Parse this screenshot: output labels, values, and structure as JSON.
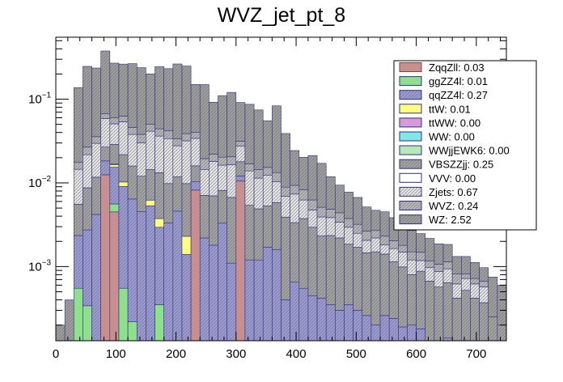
{
  "chart_data": {
    "type": "bar",
    "stacked": true,
    "title": "WVZ_jet_pt_8",
    "xlabel": "",
    "ylabel": "",
    "xlim": [
      0,
      750
    ],
    "ylim": [
      0.00013,
      0.55
    ],
    "yscale": "log",
    "bin_width": 15,
    "x_ticks": [
      0,
      100,
      200,
      300,
      400,
      500,
      600,
      700
    ],
    "x_tick_labels": [
      "0",
      "100",
      "200",
      "300",
      "400",
      "500",
      "600",
      "700"
    ],
    "y_ticks": [
      0.001,
      0.01,
      0.1
    ],
    "y_tick_labels": [
      "10",
      "10",
      "10"
    ],
    "y_tick_exponents": [
      "−3",
      "−2",
      "−1"
    ],
    "legend_position": "top-right",
    "series": [
      {
        "name": "ZqqZll",
        "legend": "ZqqZll: 0.03",
        "color": "#c88f8f",
        "hatch": false,
        "values": {
          "5": 0.0125,
          "6": 0.0045,
          "15": 0.0082,
          "20": 0.0105
        }
      },
      {
        "name": "ggZZ4l",
        "legend": "ggZZ4l: 0.01",
        "color": "#8ee08e",
        "hatch": false,
        "values": {
          "2": 0.00055,
          "3": 0.00034,
          "6": 0.0011,
          "7": 0.00055,
          "8": 0.00022,
          "9": 0.00012,
          "10": 0.00012,
          "11": 0.00035,
          "12": 0.00012
        }
      },
      {
        "name": "qqZZ4l",
        "legend": "qqZZ4l: 0.27",
        "color": "#9b9bd8",
        "hatch": true,
        "values": {
          "2": 0.0018,
          "3": 0.0024,
          "4": 0.0042,
          "5": 0.0058,
          "6": 0.0098,
          "7": 0.0085,
          "8": 0.0062,
          "9": 0.0044,
          "10": 0.0052,
          "11": 0.0026,
          "12": 0.0032,
          "13": 0.0046,
          "14": 0.0014,
          "15": 0.0021,
          "16": 0.0022,
          "17": 0.0018,
          "18": 0.0033,
          "19": 0.0011,
          "20": 0.0016,
          "21": 0.0012,
          "22": 0.0012,
          "23": 0.0017,
          "24": 0.0016,
          "25": 0.0004,
          "26": 0.00065,
          "27": 0.00055,
          "28": 0.00045,
          "29": 0.00042,
          "30": 0.00035,
          "31": 0.0003,
          "32": 0.00035,
          "33": 0.0003,
          "34": 0.00026,
          "35": 0.0002,
          "36": 0.00026,
          "37": 0.00024,
          "38": 0.00019,
          "39": 0.0002,
          "40": 0.00018,
          "41": 0.00012,
          "42": 0.00012,
          "43": 0.00014,
          "44": 0.00012,
          "45": 0.00012,
          "46": 0.00012,
          "47": 0.00012
        }
      },
      {
        "name": "ttW",
        "legend": "ttW: 0.01",
        "color": "#ffff80",
        "hatch": false,
        "values": {
          "6": 0.0011,
          "7": 0.0012,
          "10": 0.0009,
          "11": 0.0008,
          "14": 0.0009
        }
      },
      {
        "name": "ttWW",
        "legend": "ttWW: 0.00",
        "color": "#d79bd8",
        "hatch": false,
        "values": {}
      },
      {
        "name": "WW",
        "legend": "WW: 0.00",
        "color": "#80e8e8",
        "hatch": false,
        "values": {
          "6": 0.0003
        }
      },
      {
        "name": "WWjjEWK6",
        "legend": "WWjjEWK6: 0.00",
        "color": "#b8e8b8",
        "hatch": false,
        "values": {}
      },
      {
        "name": "VBSZZjj",
        "legend": "VBSZZjj: 0.25",
        "color": "#a3a3a3",
        "hatch": true,
        "values": {
          "2": 0.0032,
          "3": 0.006,
          "4": 0.0075,
          "5": 0.0085,
          "6": 0.012,
          "7": 0.0115,
          "8": 0.0095,
          "9": 0.0075,
          "10": 0.0082,
          "11": 0.0095,
          "12": 0.0065,
          "13": 0.0072,
          "14": 0.0075,
          "15": 0.0057,
          "16": 0.0049,
          "17": 0.0052,
          "18": 0.0048,
          "19": 0.0056,
          "20": 0.0058,
          "21": 0.0042,
          "22": 0.0037,
          "23": 0.0036,
          "24": 0.0042,
          "25": 0.0035,
          "26": 0.0027,
          "27": 0.0032,
          "28": 0.0025,
          "29": 0.0019,
          "30": 0.002,
          "31": 0.0019,
          "32": 0.0015,
          "33": 0.0014,
          "34": 0.0012,
          "35": 0.0013,
          "36": 0.00115,
          "37": 0.0009,
          "38": 0.0008,
          "39": 0.0006,
          "40": 0.0007,
          "41": 0.00055,
          "42": 0.00045,
          "43": 0.0005,
          "44": 0.0003,
          "45": 0.0004,
          "46": 0.0003,
          "47": 0.00025,
          "48": 0.00025,
          "49": 0.0002
        }
      },
      {
        "name": "VVV",
        "legend": "VVV: 0.00",
        "color": "#ffffff",
        "hatch": false,
        "values": {}
      },
      {
        "name": "Zjets",
        "legend": "Zjets: 0.67",
        "color": "#e6e6e6",
        "hatch": true,
        "values": {
          "2": 0.009,
          "3": 0.013,
          "4": 0.018,
          "5": 0.032,
          "6": 0.022,
          "7": 0.032,
          "8": 0.022,
          "9": 0.018,
          "10": 0.027,
          "11": 0.023,
          "12": 0.024,
          "13": 0.016,
          "14": 0.022,
          "15": 0.018,
          "16": 0.0074,
          "17": 0.011,
          "18": 0.0082,
          "19": 0.0098,
          "20": 0.0095,
          "21": 0.0085,
          "22": 0.0065,
          "23": 0.007,
          "24": 0.0045,
          "25": 0.003,
          "26": 0.004,
          "27": 0.0025,
          "28": 0.0018,
          "29": 0.0016,
          "30": 0.0015,
          "31": 0.0012,
          "32": 0.0011,
          "33": 0.0008,
          "34": 0.0006,
          "35": 0.0007,
          "36": 0.0004,
          "37": 0.0005,
          "38": 0.0005,
          "39": 0.0004,
          "40": 0.0003,
          "41": 0.0003,
          "42": 0.0003,
          "43": 0.0003,
          "44": 0.0002,
          "45": 0.0002,
          "46": 0.0002,
          "47": 0.0002
        }
      },
      {
        "name": "WVZ",
        "legend": "WVZ: 0.24",
        "color": "#b8b8b8",
        "hatch": true,
        "values": {
          "2": 0.003,
          "3": 0.005,
          "4": 0.006,
          "5": 0.008,
          "6": 0.009,
          "7": 0.009,
          "8": 0.008,
          "9": 0.008,
          "10": 0.009,
          "11": 0.008,
          "12": 0.008,
          "13": 0.006,
          "14": 0.007,
          "15": 0.006,
          "16": 0.005,
          "17": 0.004,
          "18": 0.004,
          "19": 0.004,
          "20": 0.004,
          "21": 0.003,
          "22": 0.003,
          "23": 0.003,
          "24": 0.003,
          "25": 0.002,
          "26": 0.002,
          "27": 0.002,
          "28": 0.0015,
          "29": 0.0012,
          "30": 0.001,
          "31": 0.001,
          "32": 0.0008,
          "33": 0.0007,
          "34": 0.0006,
          "35": 0.0005,
          "36": 0.0005,
          "37": 0.0004,
          "38": 0.0003,
          "39": 0.0003,
          "40": 0.0003,
          "41": 0.0002,
          "42": 0.0002,
          "43": 0.0002,
          "44": 0.0002,
          "45": 0.0001,
          "46": 0.0001,
          "47": 0.0001
        }
      },
      {
        "name": "WZ",
        "legend": "WZ: 2.52",
        "color": "#9e9e9e",
        "hatch": true,
        "values": {
          "0": 0.0002,
          "1": 0.0004,
          "2": 0.12,
          "3": 0.22,
          "4": 0.2,
          "5": 0.31,
          "6": 0.21,
          "7": 0.2,
          "8": 0.22,
          "9": 0.2,
          "10": 0.15,
          "11": 0.2,
          "12": 0.19,
          "13": 0.23,
          "14": 0.21,
          "15": 0.11,
          "16": 0.13,
          "17": 0.07,
          "18": 0.09,
          "19": 0.1,
          "20": 0.06,
          "21": 0.07,
          "22": 0.06,
          "23": 0.04,
          "24": 0.07,
          "25": 0.03,
          "26": 0.015,
          "27": 0.012,
          "28": 0.015,
          "29": 0.012,
          "30": 0.007,
          "31": 0.005,
          "32": 0.004,
          "33": 0.0035,
          "34": 0.0025,
          "35": 0.002,
          "36": 0.0022,
          "37": 0.0018,
          "38": 0.0015,
          "39": 0.0012,
          "40": 0.001,
          "41": 0.001,
          "42": 0.0008,
          "43": 0.0007,
          "44": 0.0005,
          "45": 0.0005,
          "46": 0.0004,
          "47": 0.0003,
          "48": 0.0005,
          "49": 0.0004
        }
      }
    ]
  }
}
